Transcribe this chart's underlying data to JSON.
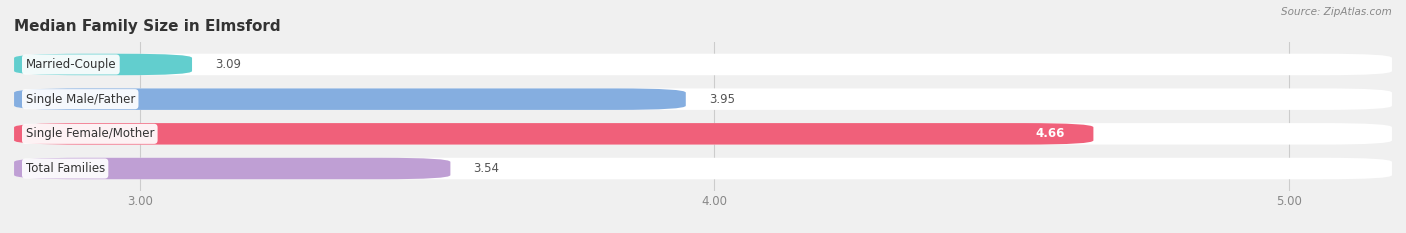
{
  "title": "Median Family Size in Elmsford",
  "source": "Source: ZipAtlas.com",
  "categories": [
    "Married-Couple",
    "Single Male/Father",
    "Single Female/Mother",
    "Total Families"
  ],
  "values": [
    3.09,
    3.95,
    4.66,
    3.54
  ],
  "bar_colors": [
    "#62cece",
    "#85aee0",
    "#f0607a",
    "#bf9fd4"
  ],
  "xlim_min": 2.78,
  "xlim_max": 5.18,
  "xticks": [
    3.0,
    4.0,
    5.0
  ],
  "xtick_labels": [
    "3.00",
    "4.00",
    "5.00"
  ],
  "background_color": "#f0f0f0",
  "bar_bg_color": "#ffffff",
  "title_fontsize": 11,
  "label_fontsize": 8.5,
  "value_fontsize": 8.5,
  "tick_fontsize": 8.5,
  "bar_height": 0.62,
  "rounding_size": 0.12
}
